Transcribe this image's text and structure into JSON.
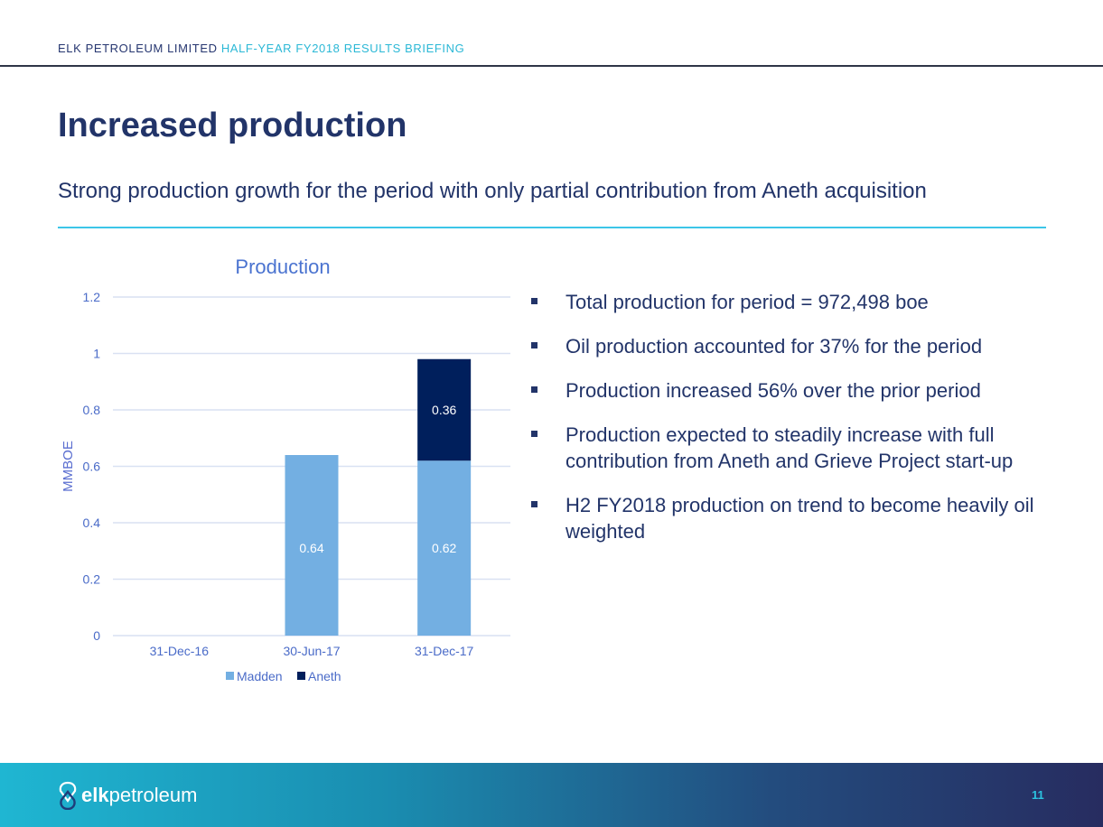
{
  "header": {
    "company": "ELK PETROLEUM LIMITED",
    "briefing": "HALF-YEAR FY2018 RESULTS BRIEFING"
  },
  "title": "Increased production",
  "subtitle": "Strong production growth for the period with only partial contribution from Aneth acquisition",
  "bullets": [
    "Total production for period = 972,498 boe",
    "Oil production accounted for 37% for the period",
    "Production increased 56% over the prior period",
    "Production expected to steadily increase with full contribution from Aneth and Grieve Project start-up",
    "H2 FY2018 production on trend to become heavily oil weighted"
  ],
  "footer": {
    "logo_bold": "elk",
    "logo_light": "petroleum",
    "page_number": "11"
  },
  "chart_data": {
    "type": "bar",
    "stacked": true,
    "title": "Production",
    "xlabel": "",
    "ylabel": "MMBOE",
    "categories": [
      "31-Dec-16",
      "30-Jun-17",
      "31-Dec-17"
    ],
    "series": [
      {
        "name": "Madden",
        "values": [
          0,
          0.64,
          0.62
        ],
        "labels": [
          "",
          "0.64",
          "0.62"
        ],
        "color": "#73afe2"
      },
      {
        "name": "Aneth",
        "values": [
          0,
          0,
          0.36
        ],
        "labels": [
          "",
          "",
          "0.36"
        ],
        "color": "#001f5c"
      }
    ],
    "ylim": [
      0,
      1.2
    ],
    "yticks": [
      "0",
      "0.2",
      "0.4",
      "0.6",
      "0.8",
      "1",
      "1.2"
    ],
    "ytick_values": [
      0,
      0.2,
      0.4,
      0.6,
      0.8,
      1,
      1.2
    ],
    "grid": true,
    "legend": "bottom"
  }
}
